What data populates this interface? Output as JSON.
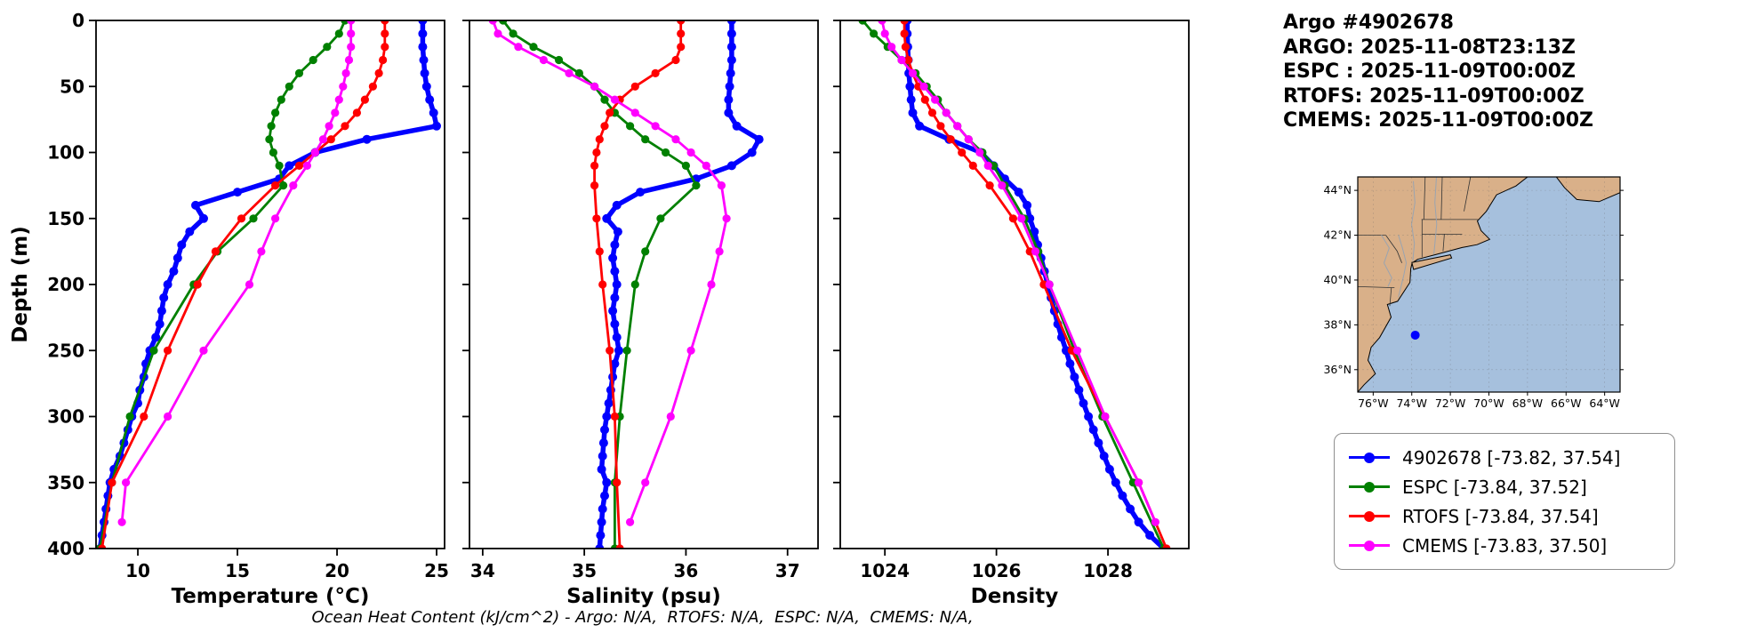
{
  "header": {
    "title": "Argo #4902678",
    "lines": [
      "ARGO: 2025-11-08T23:13Z",
      "ESPC : 2025-11-09T00:00Z",
      "RTOFS: 2025-11-09T00:00Z",
      "CMEMS: 2025-11-09T00:00Z"
    ]
  },
  "footer": {
    "text": "Ocean Heat Content (kJ/cm^2) - Argo: N/A,  RTOFS: N/A,  ESPC: N/A,  CMEMS: N/A,"
  },
  "legend": {
    "items": [
      {
        "label": "4902678 [-73.82, 37.54]",
        "color": "#0000ff"
      },
      {
        "label": "ESPC [-73.84, 37.52]",
        "color": "#008000"
      },
      {
        "label": "RTOFS [-73.84, 37.54]",
        "color": "#ff0000"
      },
      {
        "label": "CMEMS [-73.83, 37.50]",
        "color": "#ff00ff"
      }
    ]
  },
  "map": {
    "lon_range": [
      -76.8,
      -63.2
    ],
    "lat_range": [
      35.0,
      44.6
    ],
    "lon_ticks": [
      {
        "lon": -76,
        "label": "76°W"
      },
      {
        "lon": -74,
        "label": "74°W"
      },
      {
        "lon": -72,
        "label": "72°W"
      },
      {
        "lon": -70,
        "label": "70°W"
      },
      {
        "lon": -68,
        "label": "68°W"
      },
      {
        "lon": -66,
        "label": "66°W"
      },
      {
        "lon": -64,
        "label": "64°W"
      }
    ],
    "lat_ticks": [
      {
        "lat": 44,
        "label": "44°N"
      },
      {
        "lat": 42,
        "label": "42°N"
      },
      {
        "lat": 40,
        "label": "40°N"
      },
      {
        "lat": 38,
        "label": "38°N"
      },
      {
        "lat": 36,
        "label": "36°N"
      }
    ],
    "marker": {
      "lon": -73.82,
      "lat": 37.54,
      "color": "#0000ff"
    },
    "ocean_color": "#a6c0dd",
    "land_color": "#d9b089"
  },
  "chart_data": {
    "type": "line",
    "orientation": "vertical-profile",
    "ylabel": "Depth (m)",
    "ylim": [
      0,
      400
    ],
    "y_inverted": true,
    "yticks": [
      0,
      50,
      100,
      150,
      200,
      250,
      300,
      350,
      400
    ],
    "grid": false,
    "legend_position": "outside-right",
    "panels": [
      {
        "key": "temperature",
        "xlabel": "Temperature (°C)",
        "xlim": [
          7.9,
          25.4
        ],
        "xticks": [
          10,
          15,
          20,
          25
        ]
      },
      {
        "key": "salinity",
        "xlabel": "Salinity (psu)",
        "xlim": [
          33.87,
          37.3
        ],
        "xticks": [
          34,
          35,
          36,
          37
        ]
      },
      {
        "key": "density",
        "xlabel": "Density",
        "xlim": [
          1023.2,
          1029.45
        ],
        "xticks": [
          1024,
          1026,
          1028
        ]
      }
    ],
    "series": [
      {
        "name": "4902678",
        "color": "#0000ff",
        "line_width": 5.5,
        "marker_size": 5,
        "depths": [
          0,
          10,
          20,
          30,
          40,
          50,
          60,
          70,
          80,
          90,
          100,
          110,
          120,
          130,
          140,
          150,
          160,
          170,
          180,
          190,
          200,
          210,
          220,
          230,
          240,
          250,
          260,
          270,
          280,
          290,
          300,
          310,
          320,
          330,
          340,
          350,
          360,
          370,
          380,
          390,
          400
        ],
        "temperature": [
          24.3,
          24.3,
          24.3,
          24.35,
          24.4,
          24.5,
          24.65,
          24.85,
          25.0,
          21.5,
          18.9,
          17.6,
          17.1,
          15.0,
          12.9,
          13.3,
          12.6,
          12.2,
          12.0,
          11.8,
          11.5,
          11.3,
          11.2,
          11.1,
          10.9,
          10.6,
          10.4,
          10.3,
          10.1,
          10.0,
          9.7,
          9.5,
          9.3,
          9.1,
          8.8,
          8.6,
          8.5,
          8.4,
          8.3,
          8.2,
          8.1
        ],
        "salinity": [
          36.45,
          36.45,
          36.45,
          36.45,
          36.44,
          36.43,
          36.42,
          36.42,
          36.5,
          36.72,
          36.65,
          36.45,
          36.1,
          35.55,
          35.32,
          35.22,
          35.33,
          35.3,
          35.28,
          35.3,
          35.32,
          35.3,
          35.28,
          35.3,
          35.32,
          35.34,
          35.3,
          35.28,
          35.26,
          35.24,
          35.22,
          35.2,
          35.19,
          35.18,
          35.17,
          35.22,
          35.2,
          35.18,
          35.17,
          35.16,
          35.15
        ],
        "density": [
          1024.4,
          1024.4,
          1024.41,
          1024.42,
          1024.43,
          1024.45,
          1024.47,
          1024.5,
          1024.62,
          1025.15,
          1025.72,
          1025.95,
          1026.15,
          1026.4,
          1026.55,
          1026.6,
          1026.68,
          1026.74,
          1026.8,
          1026.86,
          1026.92,
          1026.98,
          1027.04,
          1027.1,
          1027.17,
          1027.25,
          1027.32,
          1027.4,
          1027.48,
          1027.56,
          1027.65,
          1027.74,
          1027.83,
          1027.93,
          1028.03,
          1028.14,
          1028.26,
          1028.4,
          1028.55,
          1028.75,
          1029.0
        ]
      },
      {
        "name": "ESPC",
        "color": "#008000",
        "line_width": 2.8,
        "marker_size": 4.6,
        "depths": [
          0,
          10,
          20,
          30,
          40,
          50,
          60,
          70,
          80,
          90,
          100,
          110,
          125,
          150,
          175,
          200,
          250,
          300,
          350,
          400
        ],
        "temperature": [
          20.4,
          20.1,
          19.5,
          18.8,
          18.1,
          17.6,
          17.2,
          16.9,
          16.7,
          16.6,
          16.8,
          17.1,
          17.3,
          15.8,
          14.0,
          12.8,
          10.8,
          9.6,
          8.7,
          8.1
        ],
        "salinity": [
          34.2,
          34.3,
          34.5,
          34.75,
          34.95,
          35.1,
          35.2,
          35.3,
          35.45,
          35.6,
          35.8,
          36.0,
          36.1,
          35.75,
          35.6,
          35.5,
          35.42,
          35.35,
          35.3,
          35.3
        ],
        "density": [
          1023.6,
          1023.8,
          1024.05,
          1024.3,
          1024.55,
          1024.75,
          1024.95,
          1025.1,
          1025.3,
          1025.5,
          1025.75,
          1025.95,
          1026.15,
          1026.5,
          1026.75,
          1026.95,
          1027.4,
          1027.9,
          1028.45,
          1029.0
        ]
      },
      {
        "name": "RTOFS",
        "color": "#ff0000",
        "line_width": 2.8,
        "marker_size": 4.6,
        "depths": [
          0,
          10,
          20,
          30,
          40,
          50,
          60,
          70,
          80,
          90,
          100,
          110,
          125,
          150,
          175,
          200,
          250,
          300,
          350,
          400
        ],
        "temperature": [
          22.4,
          22.4,
          22.4,
          22.3,
          22.1,
          21.8,
          21.4,
          21.0,
          20.4,
          19.7,
          18.9,
          18.1,
          16.9,
          15.2,
          13.9,
          13.0,
          11.5,
          10.3,
          8.7,
          8.2
        ],
        "salinity": [
          35.95,
          35.95,
          35.95,
          35.9,
          35.7,
          35.5,
          35.35,
          35.25,
          35.2,
          35.15,
          35.12,
          35.1,
          35.1,
          35.12,
          35.15,
          35.18,
          35.25,
          35.3,
          35.32,
          35.35
        ],
        "density": [
          1024.35,
          1024.35,
          1024.37,
          1024.42,
          1024.5,
          1024.6,
          1024.72,
          1024.85,
          1025.0,
          1025.18,
          1025.38,
          1025.58,
          1025.88,
          1026.3,
          1026.6,
          1026.85,
          1027.35,
          1027.95,
          1028.55,
          1029.05
        ]
      },
      {
        "name": "CMEMS",
        "color": "#ff00ff",
        "line_width": 2.8,
        "marker_size": 4.6,
        "depths": [
          0,
          10,
          20,
          30,
          40,
          50,
          60,
          70,
          80,
          90,
          100,
          110,
          125,
          150,
          175,
          200,
          250,
          300,
          350,
          380
        ],
        "temperature": [
          20.7,
          20.7,
          20.7,
          20.6,
          20.45,
          20.3,
          20.1,
          19.9,
          19.6,
          19.3,
          18.9,
          18.5,
          17.8,
          16.9,
          16.2,
          15.6,
          13.3,
          11.5,
          9.4,
          9.2
        ],
        "salinity": [
          34.1,
          34.15,
          34.35,
          34.6,
          34.85,
          35.1,
          35.3,
          35.5,
          35.7,
          35.9,
          36.05,
          36.2,
          36.35,
          36.4,
          36.33,
          36.25,
          36.05,
          35.85,
          35.6,
          35.45
        ],
        "density": [
          1023.95,
          1024.0,
          1024.12,
          1024.3,
          1024.5,
          1024.7,
          1024.9,
          1025.1,
          1025.3,
          1025.5,
          1025.7,
          1025.85,
          1026.1,
          1026.45,
          1026.7,
          1026.95,
          1027.45,
          1027.95,
          1028.55,
          1028.85
        ]
      }
    ]
  }
}
